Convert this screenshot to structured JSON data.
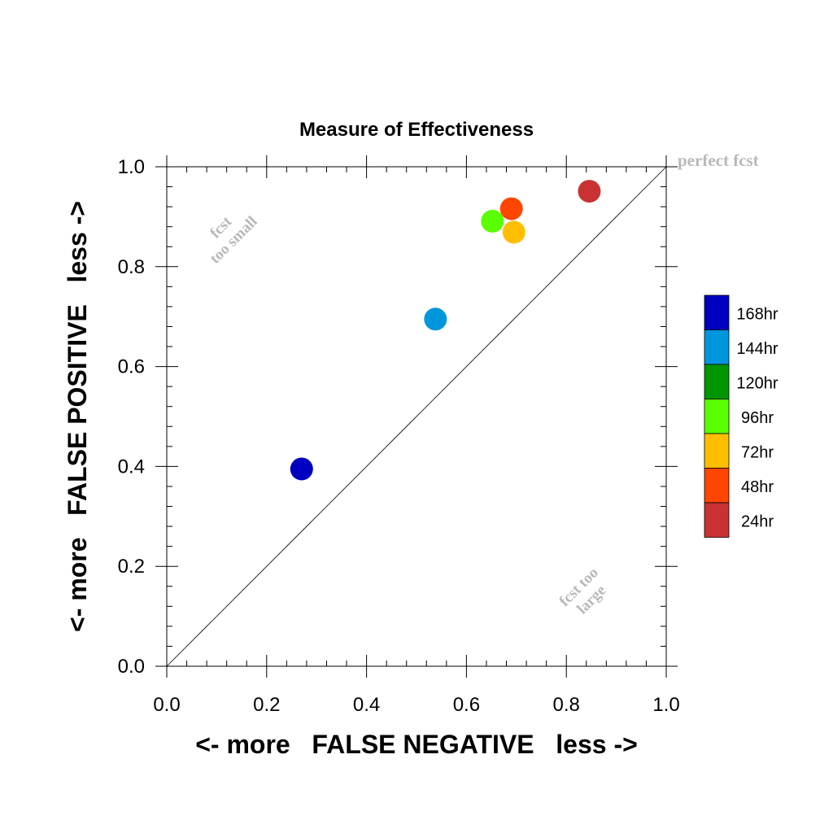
{
  "chart_data": {
    "type": "scatter",
    "title": "Measure of Effectiveness",
    "xlabel": "<- more   FALSE NEGATIVE   less ->",
    "ylabel": "<- more   FALSE POSITIVE   less ->",
    "xlim": [
      0.0,
      1.0
    ],
    "ylim": [
      0.0,
      1.0
    ],
    "x_ticks": [
      "0.0",
      "0.2",
      "0.4",
      "0.6",
      "0.8",
      "1.0"
    ],
    "y_ticks": [
      "0.0",
      "0.2",
      "0.4",
      "0.6",
      "0.8",
      "1.0"
    ],
    "grid": false,
    "diagonal_line": true,
    "legend_position": "right",
    "annotations": {
      "perfect": "perfect fcst",
      "too_small": [
        "fcst",
        "too small"
      ],
      "too_large": [
        "fcst too",
        "large"
      ]
    },
    "legend": [
      {
        "label": "168hr",
        "color": "#0000c0"
      },
      {
        "label": "144hr",
        "color": "#0096dc"
      },
      {
        "label": "120hr",
        "color": "#009600"
      },
      {
        "label": "96hr",
        "color": "#5aff00"
      },
      {
        "label": "72hr",
        "color": "#ffbe00"
      },
      {
        "label": "48hr",
        "color": "#ff4600"
      },
      {
        "label": "24hr",
        "color": "#c83232"
      }
    ],
    "series": [
      {
        "name": "168hr",
        "x": 0.27,
        "y": 0.395,
        "color": "#0000c0"
      },
      {
        "name": "144hr",
        "x": 0.538,
        "y": 0.695,
        "color": "#0096dc"
      },
      {
        "name": "96hr",
        "x": 0.652,
        "y": 0.891,
        "color": "#5aff00"
      },
      {
        "name": "72hr",
        "x": 0.695,
        "y": 0.869,
        "color": "#ffbe00"
      },
      {
        "name": "48hr",
        "x": 0.69,
        "y": 0.916,
        "color": "#ff4600"
      },
      {
        "name": "24hr",
        "x": 0.846,
        "y": 0.951,
        "color": "#c83232"
      }
    ]
  }
}
